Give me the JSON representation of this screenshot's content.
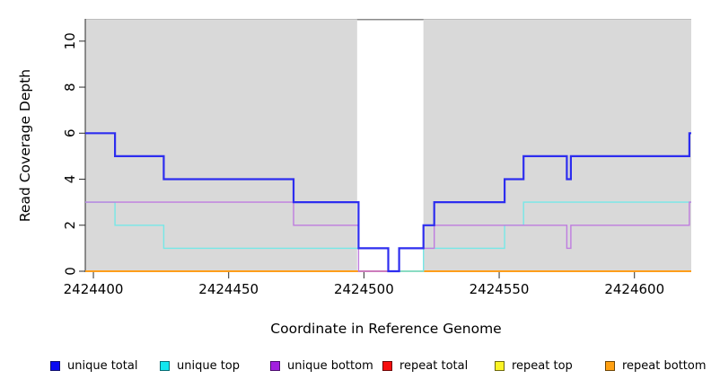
{
  "chart_data": {
    "type": "line",
    "step": true,
    "title": "",
    "xlabel": "Coordinate in Reference Genome",
    "ylabel": "Read Coverage Depth",
    "xlim": [
      2424397,
      2424621
    ],
    "ylim": [
      0,
      11
    ],
    "xticks": [
      2424400,
      2424450,
      2424500,
      2424550,
      2424600
    ],
    "yticks": [
      0,
      2,
      4,
      6,
      8,
      10
    ],
    "grid": false,
    "plot_background": "#d9d9d9",
    "plot_top_edge_color": "#bcbcbc",
    "gap_region": {
      "start": 2424497.5,
      "end": 2424522,
      "color": "#ffffff",
      "border": "#8a8a8a"
    },
    "series": [
      {
        "name": "unique total",
        "color": "#2d2def",
        "line_width": 2.2,
        "points": [
          [
            2424397,
            6
          ],
          [
            2424408,
            5
          ],
          [
            2424426,
            4
          ],
          [
            2424474,
            3
          ],
          [
            2424498,
            1
          ],
          [
            2424509,
            0
          ],
          [
            2424513,
            1
          ],
          [
            2424522,
            2
          ],
          [
            2424526,
            3
          ],
          [
            2424552,
            4
          ],
          [
            2424559,
            5
          ],
          [
            2424575,
            4
          ],
          [
            2424576.5,
            5
          ],
          [
            2424620.3,
            6
          ]
        ]
      },
      {
        "name": "unique top",
        "color": "#76e8e7",
        "line_width": 1.4,
        "points": [
          [
            2424397,
            3
          ],
          [
            2424408,
            2
          ],
          [
            2424426,
            1
          ],
          [
            2424509,
            0
          ],
          [
            2424522,
            1
          ],
          [
            2424552,
            2
          ],
          [
            2424559,
            3
          ]
        ]
      },
      {
        "name": "unique bottom",
        "color": "#bf7cdf",
        "line_width": 1.4,
        "points": [
          [
            2424397,
            3
          ],
          [
            2424474,
            2
          ],
          [
            2424498,
            0
          ],
          [
            2424513,
            1
          ],
          [
            2424526,
            2
          ],
          [
            2424575,
            1
          ],
          [
            2424576.5,
            2
          ],
          [
            2424620.3,
            3
          ]
        ]
      },
      {
        "name": "repeat total",
        "color": "#e43f3f",
        "line_width": 1.4,
        "points": [
          [
            2424397,
            0
          ]
        ]
      },
      {
        "name": "repeat top",
        "color": "#f0f040",
        "line_width": 1.4,
        "points": [
          [
            2424397,
            0
          ]
        ]
      },
      {
        "name": "repeat bottom",
        "color": "#ff9e1b",
        "line_width": 2,
        "points": [
          [
            2424397,
            0
          ]
        ]
      }
    ],
    "blend_segments": [
      {
        "name": "unique-bottom-at-zero-blend",
        "color": "#e2608a",
        "value": 0,
        "start": 2424498,
        "end": 2424509,
        "width": 1.6
      },
      {
        "name": "unique-top-at-zero-blend",
        "color": "#8cd793",
        "value": 0,
        "start": 2424513,
        "end": 2424522,
        "width": 1.6
      }
    ],
    "legend_position": "bottom"
  },
  "legend": {
    "items": [
      {
        "label": "unique total",
        "fill": "#0b0bf2",
        "border": "#10106e"
      },
      {
        "label": "unique top",
        "fill": "#12e7ef",
        "border": "#0a6d74"
      },
      {
        "label": "unique bottom",
        "fill": "#a21fdf",
        "border": "#4c0f6e"
      },
      {
        "label": "repeat total",
        "fill": "#f70e0e",
        "border": "#6e0808"
      },
      {
        "label": "repeat top",
        "fill": "#fbf425",
        "border": "#6e6a10"
      },
      {
        "label": "repeat bottom",
        "fill": "#ffa011",
        "border": "#6e4708"
      }
    ]
  }
}
